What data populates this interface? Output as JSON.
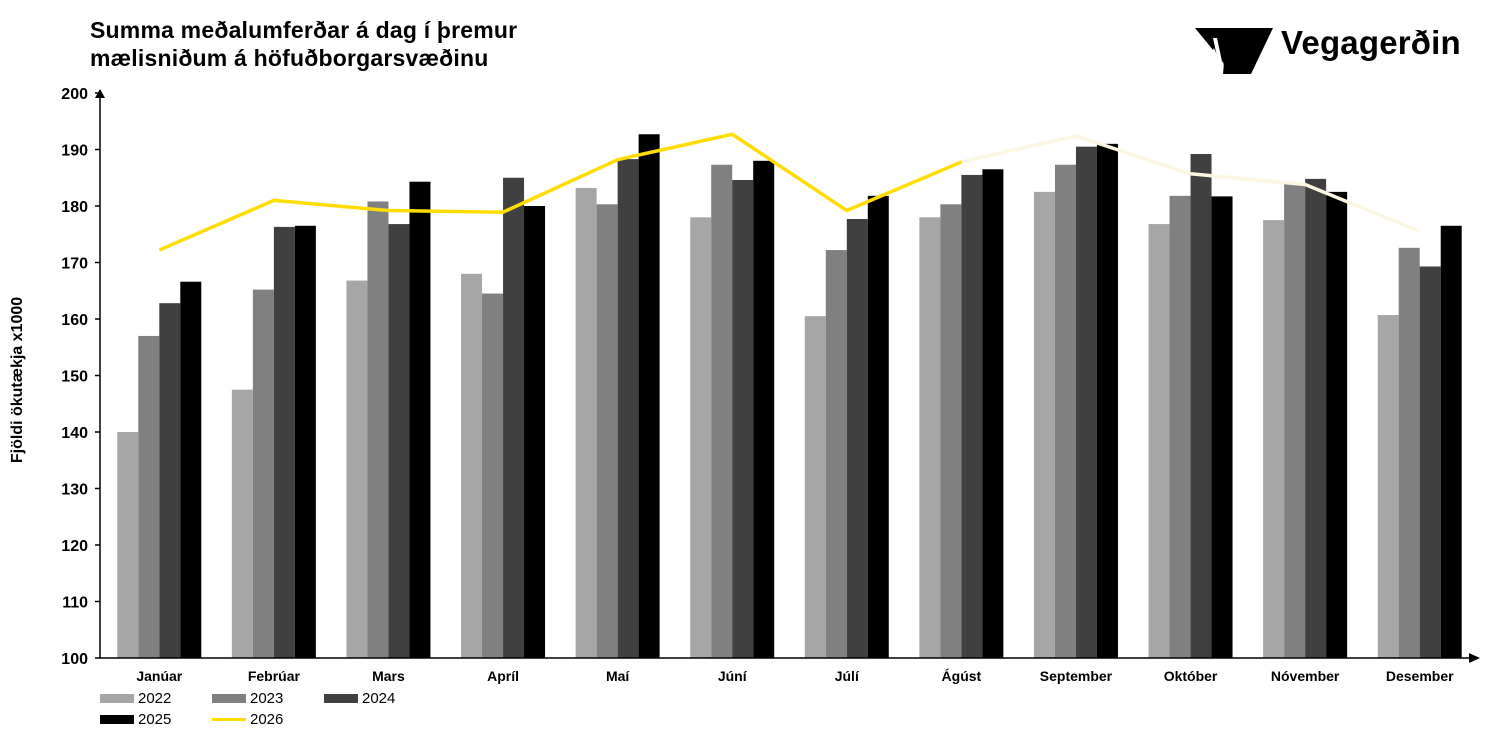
{
  "title": {
    "line1": "Summa meðalumferðar á dag í þremur",
    "line2": "mælisniðum á höfuðborgarsvæðinu"
  },
  "logo": {
    "text": "Vegagerðin",
    "icon": "vegagerdin-logo-icon"
  },
  "chart_data": {
    "type": "bar",
    "title": "Summa meðalumferðar á dag í þremur mælisniðum á höfuðborgarsvæðinu",
    "ylabel": "Fjöldi ökutækja x1000",
    "xlabel": "",
    "ylim": [
      100,
      200
    ],
    "yticks": [
      100,
      110,
      120,
      130,
      140,
      150,
      160,
      170,
      180,
      190,
      200
    ],
    "categories": [
      "Janúar",
      "Febrúar",
      "Mars",
      "Apríl",
      "Maí",
      "Júní",
      "Júlí",
      "Ágúst",
      "September",
      "Október",
      "Nóvember",
      "Desember"
    ],
    "series": [
      {
        "name": "2022",
        "type": "bar",
        "color": "#a6a6a6",
        "values": [
          140.0,
          147.5,
          166.8,
          168.0,
          183.2,
          178.0,
          160.5,
          178.0,
          182.5,
          176.8,
          177.5,
          160.7
        ]
      },
      {
        "name": "2023",
        "type": "bar",
        "color": "#808080",
        "values": [
          157.0,
          165.2,
          180.8,
          164.5,
          180.3,
          187.3,
          172.2,
          180.3,
          187.3,
          181.8,
          184.0,
          172.6
        ]
      },
      {
        "name": "2024",
        "type": "bar",
        "color": "#404040",
        "values": [
          162.8,
          176.3,
          176.8,
          185.0,
          188.3,
          184.6,
          177.7,
          185.5,
          190.5,
          189.2,
          184.8,
          169.3
        ]
      },
      {
        "name": "2025",
        "type": "bar",
        "color": "#000000",
        "values": [
          166.6,
          176.5,
          184.3,
          180.0,
          192.7,
          188.0,
          181.8,
          186.5,
          191.0,
          181.7,
          182.5,
          176.5
        ]
      },
      {
        "name": "2026",
        "type": "line",
        "color": "#ffdd00",
        "fadedColor": "#fbf7e2",
        "values": [
          172.2,
          181.0,
          179.2,
          178.9,
          188.2,
          192.7,
          179.2,
          187.8,
          192.4,
          185.7,
          183.8,
          175.5
        ]
      }
    ],
    "legend_position": "bottom-left",
    "grid": false
  },
  "legend": {
    "items": [
      {
        "label": "2022",
        "color": "#a6a6a6",
        "kind": "bar"
      },
      {
        "label": "2023",
        "color": "#808080",
        "kind": "bar"
      },
      {
        "label": "2024",
        "color": "#404040",
        "kind": "bar"
      },
      {
        "label": "2025",
        "color": "#000000",
        "kind": "bar"
      },
      {
        "label": "2026",
        "color": "#ffdd00",
        "kind": "line"
      }
    ]
  }
}
